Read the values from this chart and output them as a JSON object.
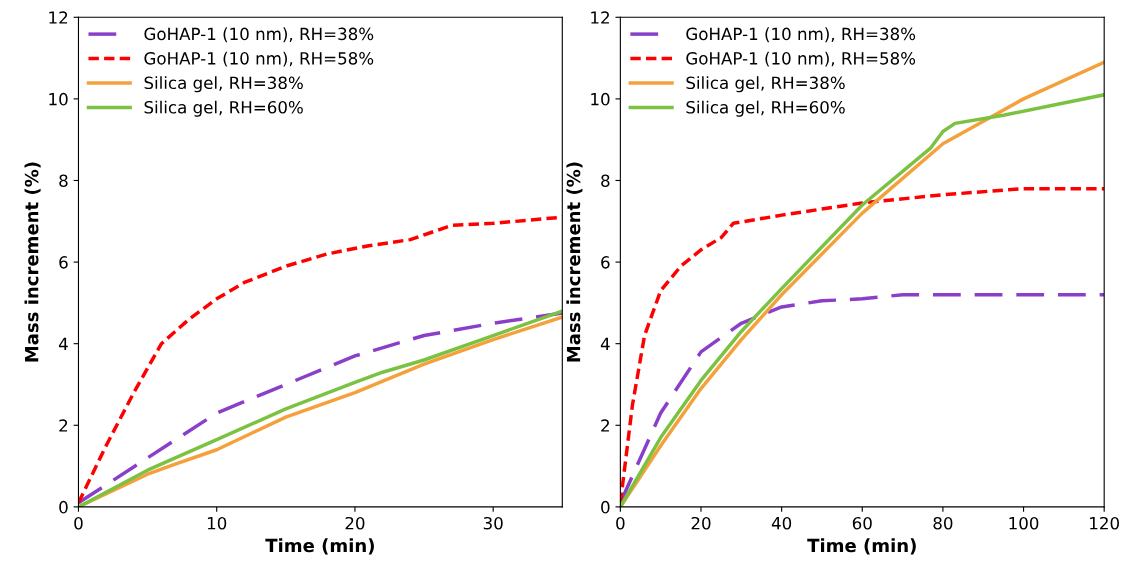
{
  "chart_data": [
    {
      "type": "line",
      "xlabel": "Time (min)",
      "ylabel": "Mass increment (%)",
      "xlim": [
        0,
        35
      ],
      "xticks": [
        0,
        10,
        20,
        30
      ],
      "ylim": [
        0,
        12
      ],
      "yticks": [
        0,
        2,
        4,
        6,
        8,
        10,
        12
      ],
      "legend": "top left",
      "grid": false,
      "marker": "none",
      "series": [
        {
          "name": "GoHAP-1 (10 nm), RH=38%",
          "color": "#8a3fc8",
          "line_style": "dashed",
          "x": [
            0,
            5,
            10,
            15,
            20,
            25,
            30,
            35
          ],
          "values": [
            0.1,
            1.2,
            2.3,
            3.0,
            3.7,
            4.2,
            4.5,
            4.75
          ]
        },
        {
          "name": "GoHAP-1 (10 nm), RH=58%",
          "color": "#ff0000",
          "line_style": "dotted",
          "x": [
            0,
            2,
            4,
            6,
            8,
            10,
            12,
            15,
            18,
            21,
            24,
            27,
            30,
            35
          ],
          "values": [
            0.1,
            1.5,
            2.8,
            4.0,
            4.6,
            5.1,
            5.5,
            5.9,
            6.2,
            6.4,
            6.55,
            6.9,
            6.95,
            7.1
          ]
        },
        {
          "name": "Silica gel, RH=38%",
          "color": "#f4a13c",
          "line_style": "solid",
          "x": [
            0,
            5,
            7,
            10,
            15,
            20,
            25,
            30,
            35
          ],
          "values": [
            0,
            0.8,
            1.05,
            1.4,
            2.2,
            2.8,
            3.5,
            4.1,
            4.65
          ]
        },
        {
          "name": "Silica gel, RH=60%",
          "color": "#7cc242",
          "line_style": "solid",
          "x": [
            0,
            5,
            10,
            15,
            20,
            22,
            25,
            30,
            35
          ],
          "values": [
            0,
            0.9,
            1.65,
            2.4,
            3.05,
            3.3,
            3.6,
            4.2,
            4.8
          ]
        }
      ]
    },
    {
      "type": "line",
      "xlabel": "Time (min)",
      "ylabel": "Mass increment (%)",
      "xlim": [
        0,
        120
      ],
      "xticks": [
        0,
        20,
        40,
        60,
        80,
        100,
        120
      ],
      "ylim": [
        0,
        12
      ],
      "yticks": [
        0,
        2,
        4,
        6,
        8,
        10,
        12
      ],
      "legend": "top left",
      "grid": false,
      "marker": "none",
      "series": [
        {
          "name": "GoHAP-1 (10 nm), RH=38%",
          "color": "#8a3fc8",
          "line_style": "dashed",
          "x": [
            0,
            10,
            20,
            30,
            40,
            50,
            60,
            70,
            120
          ],
          "values": [
            0.1,
            2.3,
            3.8,
            4.5,
            4.9,
            5.05,
            5.1,
            5.2,
            5.2
          ]
        },
        {
          "name": "GoHAP-1 (10 nm), RH=58%",
          "color": "#ff0000",
          "line_style": "dotted",
          "x": [
            0,
            3,
            6,
            10,
            15,
            20,
            25,
            28,
            40,
            60,
            80,
            100,
            120
          ],
          "values": [
            0.1,
            2.5,
            4.2,
            5.3,
            5.9,
            6.3,
            6.6,
            6.95,
            7.15,
            7.45,
            7.65,
            7.8,
            7.8
          ]
        },
        {
          "name": "Silica gel, RH=38%",
          "color": "#f4a13c",
          "line_style": "solid",
          "x": [
            0,
            10,
            20,
            30,
            40,
            60,
            80,
            100,
            120
          ],
          "values": [
            0,
            1.5,
            2.9,
            4.1,
            5.2,
            7.2,
            8.9,
            10.0,
            10.9
          ]
        },
        {
          "name": "Silica gel, RH=60%",
          "color": "#7cc242",
          "line_style": "solid",
          "x": [
            0,
            10,
            20,
            30,
            40,
            60,
            77,
            80,
            83,
            95,
            120
          ],
          "values": [
            0,
            1.7,
            3.1,
            4.3,
            5.35,
            7.4,
            8.8,
            9.2,
            9.4,
            9.6,
            10.1
          ]
        }
      ]
    }
  ]
}
